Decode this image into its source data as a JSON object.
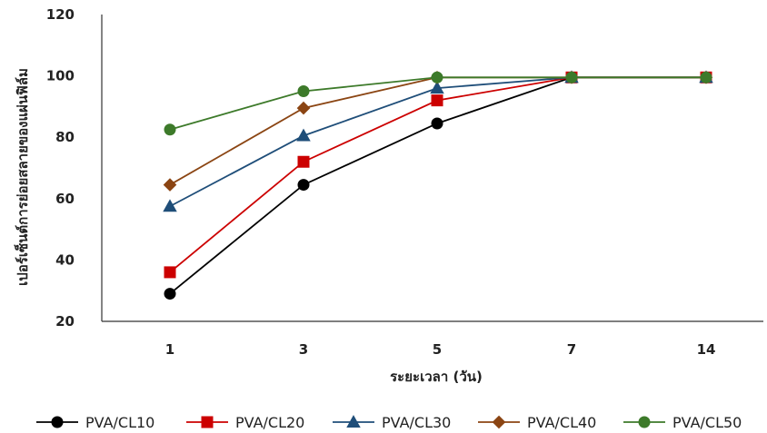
{
  "chart_data": {
    "type": "line",
    "xlabel": "ระยะเวลา (วัน)",
    "ylabel": "เปอร์เซ็นต์การย่อยสลายของแผ่นฟิล์ม",
    "categories": [
      "1",
      "3",
      "5",
      "7",
      "14"
    ],
    "ylim": [
      20,
      120
    ],
    "yticks": [
      20,
      40,
      60,
      80,
      100,
      120
    ],
    "grid": false,
    "legend": "bottom",
    "series": [
      {
        "name": "PVA/CL10",
        "color": "#000000",
        "marker": "circle",
        "values": [
          29,
          64.5,
          84.5,
          99.5,
          99.5
        ]
      },
      {
        "name": "PVA/CL20",
        "color": "#cc0000",
        "marker": "square",
        "values": [
          36,
          72,
          92,
          99.5,
          99.5
        ]
      },
      {
        "name": "PVA/CL30",
        "color": "#1f4e79",
        "marker": "triangle",
        "values": [
          57.5,
          80.5,
          96,
          99.5,
          99.5
        ]
      },
      {
        "name": "PVA/CL40",
        "color": "#8b4513",
        "marker": "diamond",
        "values": [
          64.5,
          89.5,
          99.5,
          99.5,
          99.5
        ]
      },
      {
        "name": "PVA/CL50",
        "color": "#3d7a2a",
        "marker": "circle",
        "values": [
          82.5,
          95,
          99.5,
          99.5,
          99.5
        ]
      }
    ]
  }
}
